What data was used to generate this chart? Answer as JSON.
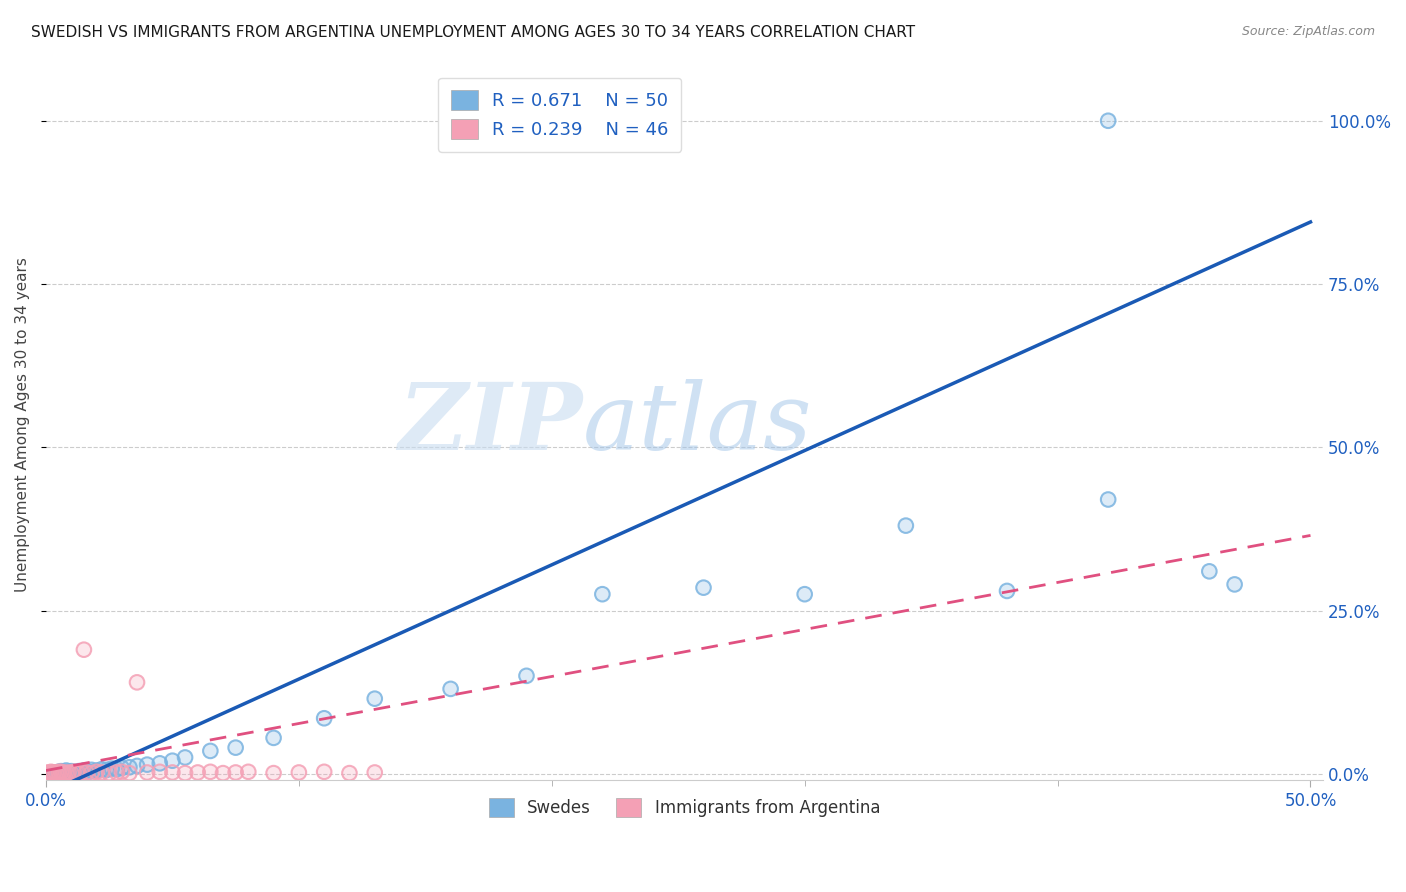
{
  "title": "SWEDISH VS IMMIGRANTS FROM ARGENTINA UNEMPLOYMENT AMONG AGES 30 TO 34 YEARS CORRELATION CHART",
  "source": "Source: ZipAtlas.com",
  "ylabel": "Unemployment Among Ages 30 to 34 years",
  "xlim": [
    0.0,
    0.505
  ],
  "ylim": [
    -0.01,
    1.08
  ],
  "swedes_color": "#7ab3e0",
  "argentina_color": "#f4a0b5",
  "swedes_line_color": "#1a5ab5",
  "argentina_line_color": "#e05080",
  "swedes_R": 0.671,
  "swedes_N": 50,
  "argentina_R": 0.239,
  "argentina_N": 46,
  "legend_label_swedes": "Swedes",
  "legend_label_argentina": "Immigrants from Argentina",
  "watermark_zip": "ZIP",
  "watermark_atlas": "atlas",
  "ytick_vals": [
    0.0,
    0.25,
    0.5,
    0.75,
    1.0
  ],
  "xtick_show": [
    0.0,
    0.5
  ],
  "xtick_minor": [
    0.1,
    0.2,
    0.3,
    0.4
  ],
  "swedes_x": [
    0.003,
    0.004,
    0.005,
    0.005,
    0.006,
    0.006,
    0.007,
    0.007,
    0.008,
    0.008,
    0.009,
    0.009,
    0.01,
    0.01,
    0.011,
    0.012,
    0.013,
    0.014,
    0.015,
    0.016,
    0.017,
    0.018,
    0.02,
    0.022,
    0.024,
    0.026,
    0.028,
    0.03,
    0.033,
    0.036,
    0.04,
    0.045,
    0.05,
    0.055,
    0.065,
    0.075,
    0.09,
    0.11,
    0.13,
    0.16,
    0.19,
    0.22,
    0.26,
    0.3,
    0.34,
    0.38,
    0.42,
    0.46,
    0.47,
    0.42
  ],
  "swedes_y": [
    0.002,
    0.001,
    0.003,
    0.001,
    0.002,
    0.004,
    0.001,
    0.003,
    0.002,
    0.005,
    0.001,
    0.003,
    0.002,
    0.004,
    0.003,
    0.002,
    0.004,
    0.003,
    0.005,
    0.004,
    0.003,
    0.006,
    0.005,
    0.007,
    0.006,
    0.008,
    0.007,
    0.009,
    0.01,
    0.012,
    0.014,
    0.016,
    0.02,
    0.025,
    0.035,
    0.04,
    0.055,
    0.085,
    0.115,
    0.13,
    0.15,
    0.275,
    0.285,
    0.275,
    0.38,
    0.28,
    0.42,
    0.31,
    0.29,
    1.0
  ],
  "argentina_x": [
    0.0,
    0.001,
    0.001,
    0.002,
    0.002,
    0.003,
    0.003,
    0.004,
    0.004,
    0.005,
    0.005,
    0.006,
    0.006,
    0.007,
    0.007,
    0.008,
    0.009,
    0.01,
    0.011,
    0.012,
    0.013,
    0.014,
    0.015,
    0.016,
    0.018,
    0.02,
    0.022,
    0.025,
    0.028,
    0.03,
    0.033,
    0.036,
    0.04,
    0.045,
    0.05,
    0.055,
    0.06,
    0.065,
    0.07,
    0.075,
    0.08,
    0.09,
    0.1,
    0.11,
    0.12,
    0.13
  ],
  "argentina_y": [
    0.001,
    0.002,
    0.001,
    0.003,
    0.001,
    0.002,
    0.001,
    0.002,
    0.001,
    0.003,
    0.001,
    0.002,
    0.003,
    0.001,
    0.002,
    0.001,
    0.002,
    0.001,
    0.003,
    0.002,
    0.001,
    0.003,
    0.19,
    0.002,
    0.001,
    0.003,
    0.002,
    0.001,
    0.002,
    0.003,
    0.001,
    0.14,
    0.002,
    0.003,
    0.002,
    0.001,
    0.002,
    0.003,
    0.001,
    0.002,
    0.003,
    0.001,
    0.002,
    0.003,
    0.001,
    0.002
  ],
  "swedes_line_x": [
    0.0,
    0.5
  ],
  "swedes_line_y": [
    -0.03,
    0.845
  ],
  "argentina_line_x": [
    0.0,
    0.5
  ],
  "argentina_line_y": [
    0.005,
    0.365
  ]
}
